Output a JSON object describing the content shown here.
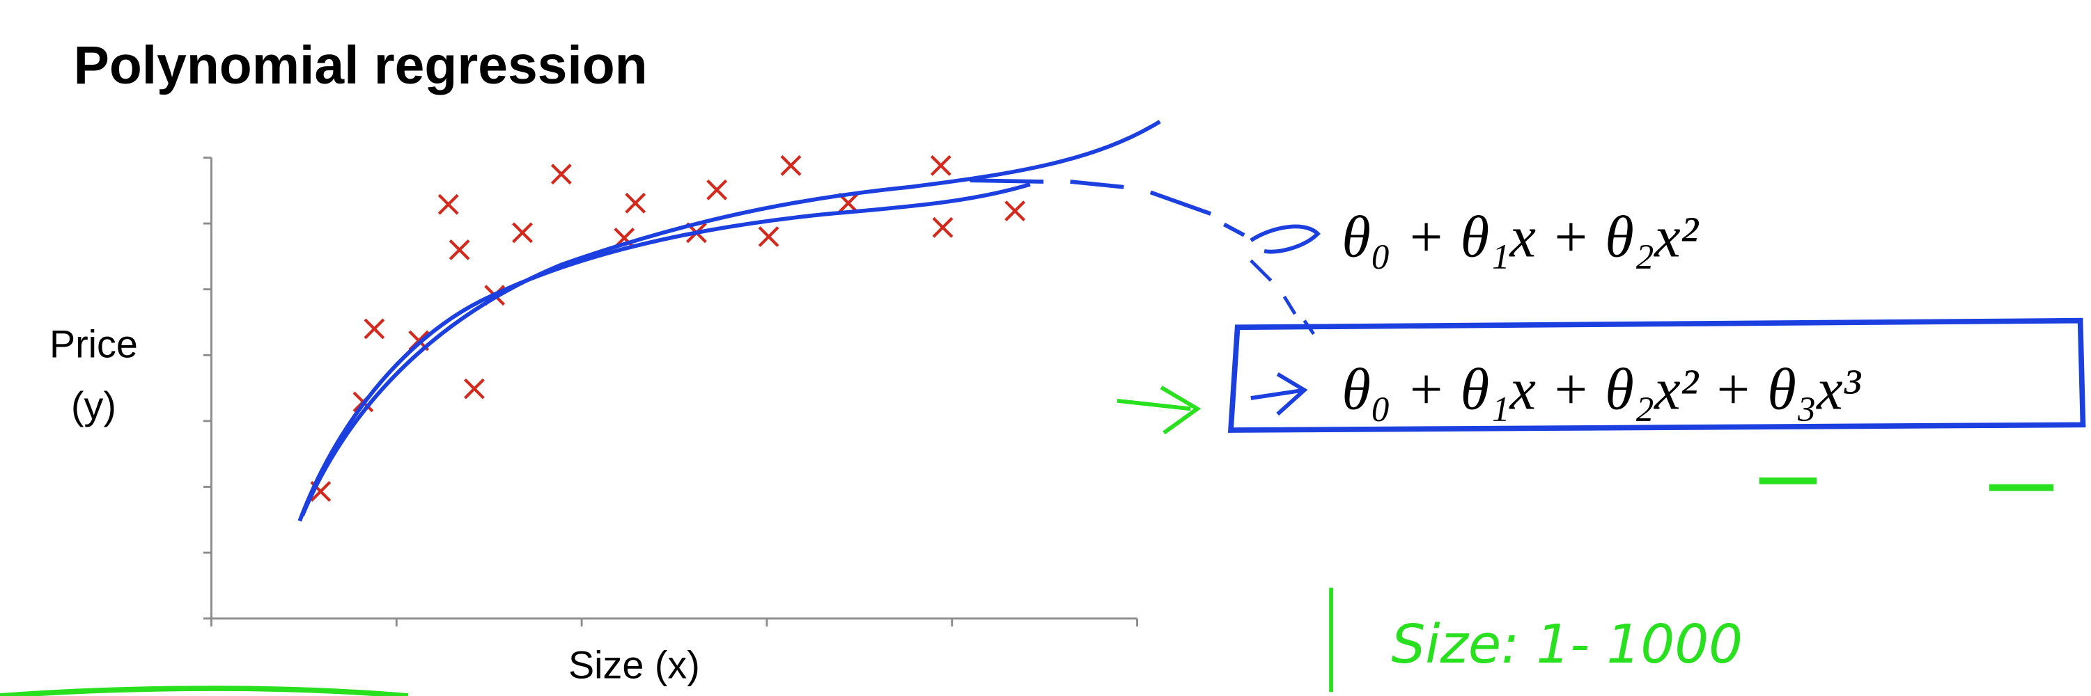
{
  "chart_data": {
    "type": "scatter",
    "title": "Polynomial regression",
    "y_label_lines": [
      "Price",
      "(y)"
    ],
    "x_label": "Size (x)",
    "x": [
      0.59,
      0.82,
      0.88,
      1.12,
      1.42,
      1.34,
      1.28,
      1.53,
      1.68,
      1.89,
      2.23,
      2.29,
      2.62,
      2.73,
      3.01,
      3.13,
      3.44,
      3.94,
      3.95,
      4.34
    ],
    "values": [
      1.93,
      3.29,
      4.4,
      4.22,
      3.49,
      5.6,
      6.29,
      4.91,
      5.86,
      6.75,
      5.78,
      6.31,
      5.86,
      6.51,
      5.8,
      6.88,
      6.31,
      6.88,
      5.94,
      6.19
    ],
    "color": "#d42a1e",
    "xlim": [
      0,
      5
    ],
    "ylim": [
      0,
      7
    ],
    "xticks": [
      0,
      1,
      2,
      3,
      4,
      5
    ],
    "yticks": [
      0,
      1,
      2,
      3,
      4,
      5,
      6,
      7
    ],
    "annotations": [
      "θ₀ + θ₁x + θ₂x²",
      "θ₀ + θ₁x + θ₂x² + θ₃x³",
      "Size:  1- 1000"
    ]
  }
}
